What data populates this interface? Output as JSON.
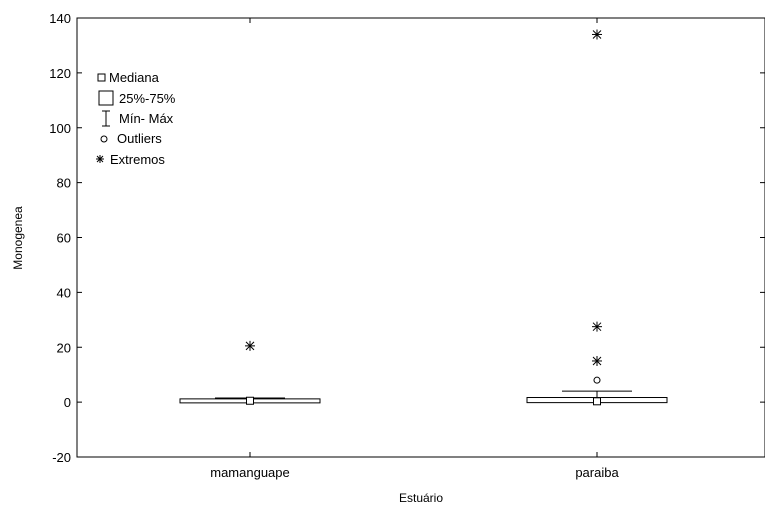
{
  "chart_data": {
    "type": "box",
    "xlabel": "Estuário",
    "ylabel": "Monogenea",
    "ylim": [
      -20,
      140
    ],
    "yticks": [
      -20,
      0,
      20,
      40,
      60,
      80,
      100,
      120,
      140
    ],
    "grid": false,
    "legend_position": "top-left",
    "categories": [
      "mamanguape",
      "paraiba"
    ],
    "boxes": [
      {
        "category": "mamanguape",
        "median": 0.5,
        "q1": 0,
        "q3": 1,
        "min": 0,
        "max": 1.5,
        "outliers": [],
        "extremes": [
          20.5
        ]
      },
      {
        "category": "paraiba",
        "median": 0.3,
        "q1": 0,
        "q3": 1.5,
        "min": 0,
        "max": 4,
        "outliers": [
          8
        ],
        "extremes": [
          15,
          27.5,
          134
        ]
      }
    ],
    "legend": [
      {
        "symbol": "median-marker",
        "label": "Mediana"
      },
      {
        "symbol": "box",
        "label": "25%-75%"
      },
      {
        "symbol": "whisker",
        "label": "Mín- Máx"
      },
      {
        "symbol": "outlier",
        "label": "Outliers"
      },
      {
        "symbol": "extreme",
        "label": "Extremos"
      }
    ]
  }
}
